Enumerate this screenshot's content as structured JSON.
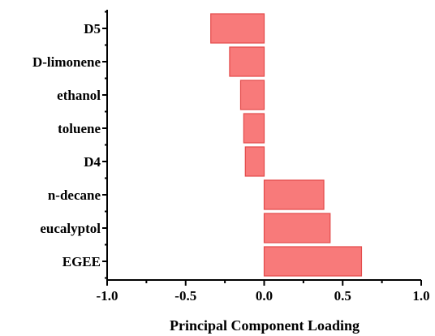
{
  "chart_data": {
    "type": "bar",
    "orientation": "horizontal",
    "categories": [
      "D5",
      "D-limonene",
      "ethanol",
      "toluene",
      "D4",
      "n-decane",
      "eucalyptol",
      "EGEE"
    ],
    "values": [
      -0.34,
      -0.22,
      -0.15,
      -0.13,
      -0.12,
      0.38,
      0.42,
      0.62
    ],
    "xlabel": "Principal Component Loading",
    "ylabel": "",
    "title": "",
    "xlim": [
      -1.0,
      1.0
    ],
    "x_ticks": [
      -1.0,
      -0.5,
      0.0,
      0.5,
      1.0
    ],
    "x_tick_labels": [
      "-1.0",
      "-0.5",
      "0.0",
      "0.5",
      "1.0"
    ],
    "grid": false,
    "colors": {
      "bar_fill": "#f87a7a",
      "bar_edge": "#e34a4a"
    }
  }
}
